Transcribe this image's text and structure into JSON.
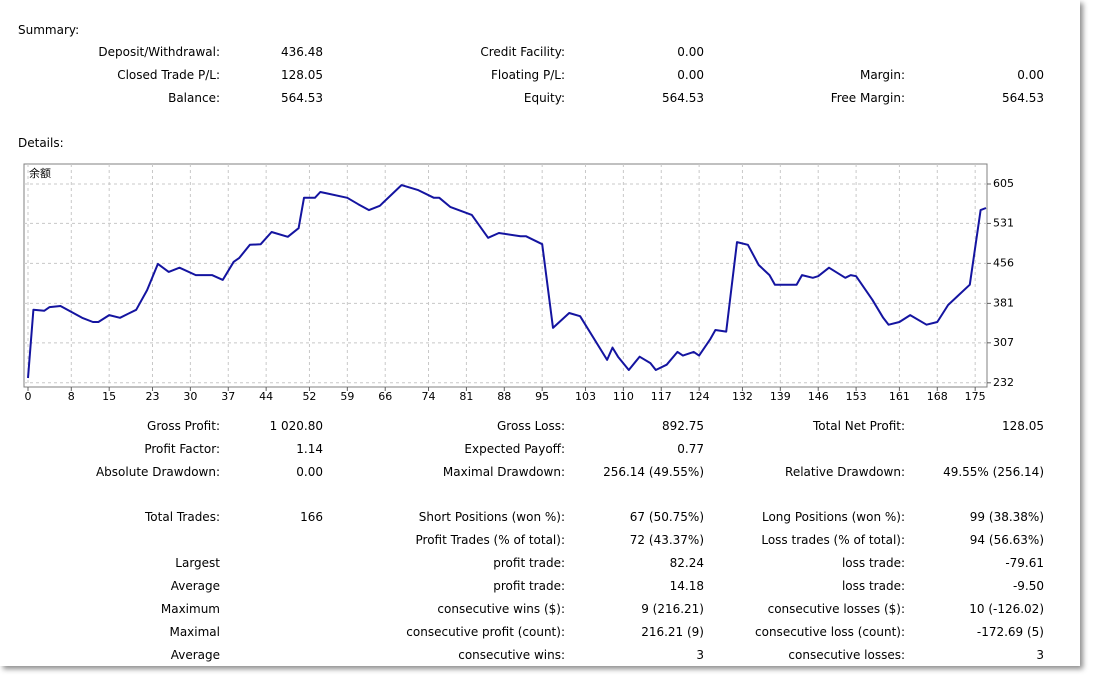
{
  "summary": {
    "title": "Summary:",
    "rows": [
      [
        {
          "label": "Deposit/Withdrawal:",
          "value": "436.48"
        },
        {
          "label": "Credit Facility:",
          "value": "0.00"
        },
        null
      ],
      [
        {
          "label": "Closed Trade P/L:",
          "value": "128.05"
        },
        {
          "label": "Floating P/L:",
          "value": "0.00"
        },
        {
          "label": "Margin:",
          "value": "0.00"
        }
      ],
      [
        {
          "label": "Balance:",
          "value": "564.53"
        },
        {
          "label": "Equity:",
          "value": "564.53"
        },
        {
          "label": "Free Margin:",
          "value": "564.53"
        }
      ]
    ]
  },
  "details": {
    "title": "Details:",
    "rows": [
      [
        {
          "label": "Gross Profit:",
          "value": "1 020.80"
        },
        {
          "label": "Gross Loss:",
          "value": "892.75"
        },
        {
          "label": "Total Net Profit:",
          "value": "128.05"
        }
      ],
      [
        {
          "label": "Profit Factor:",
          "value": "1.14"
        },
        {
          "label": "Expected Payoff:",
          "value": "0.77"
        },
        null
      ],
      [
        {
          "label": "Absolute Drawdown:",
          "value": "0.00"
        },
        {
          "label": "Maximal Drawdown:",
          "value": "256.14 (49.55%)"
        },
        {
          "label": "Relative Drawdown:",
          "value": "49.55% (256.14)"
        }
      ],
      [
        {
          "label": "Total Trades:",
          "value": "166"
        },
        {
          "label": "Short Positions (won %):",
          "value": "67 (50.75%)"
        },
        {
          "label": "Long Positions (won %):",
          "value": "99 (38.38%)"
        }
      ],
      [
        null,
        {
          "label": "Profit Trades (% of total):",
          "value": "72 (43.37%)"
        },
        {
          "label": "Loss trades (% of total):",
          "value": "94 (56.63%)"
        }
      ],
      [
        {
          "label": "Largest"
        },
        {
          "label": "profit trade:",
          "value": "82.24"
        },
        {
          "label": "loss trade:",
          "value": "-79.61"
        }
      ],
      [
        {
          "label": "Average"
        },
        {
          "label": "profit trade:",
          "value": "14.18"
        },
        {
          "label": "loss trade:",
          "value": "-9.50"
        }
      ],
      [
        {
          "label": "Maximum"
        },
        {
          "label": "consecutive wins ($):",
          "value": "9 (216.21)"
        },
        {
          "label": "consecutive losses ($):",
          "value": "10 (-126.02)"
        }
      ],
      [
        {
          "label": "Maximal"
        },
        {
          "label": "consecutive profit (count):",
          "value": "216.21 (9)"
        },
        {
          "label": "consecutive loss (count):",
          "value": "-172.69 (5)"
        }
      ],
      [
        {
          "label": "Average"
        },
        {
          "label": "consecutive wins:",
          "value": "3"
        },
        {
          "label": "consecutive losses:",
          "value": "3"
        }
      ]
    ]
  },
  "chart_data": {
    "type": "line",
    "title": "余额",
    "color": "#1414a0",
    "grid": true,
    "xlim": [
      0,
      177
    ],
    "ylim": [
      226,
      635
    ],
    "xticks": [
      0,
      8,
      15,
      23,
      30,
      37,
      44,
      52,
      59,
      66,
      74,
      81,
      88,
      95,
      103,
      110,
      117,
      124,
      132,
      139,
      146,
      153,
      161,
      168,
      175
    ],
    "yticks": [
      605,
      531,
      456,
      381,
      307,
      232
    ],
    "x": [
      0,
      1,
      3,
      4,
      6,
      8,
      10,
      12,
      13,
      15,
      17,
      18,
      20,
      22,
      24,
      26,
      28,
      31,
      34,
      36,
      38,
      39,
      41,
      43,
      45,
      48,
      50,
      51,
      53,
      54,
      55,
      59,
      61,
      63,
      65,
      69,
      72,
      75,
      76,
      78,
      82,
      85,
      87,
      91,
      92,
      95,
      97,
      100,
      102,
      107,
      108,
      109,
      111,
      113,
      115,
      116,
      118,
      120,
      121,
      123,
      124,
      126,
      127,
      129,
      131,
      133,
      135,
      137,
      138,
      142,
      143,
      145,
      146,
      148,
      151,
      152,
      153,
      156,
      158,
      159,
      161,
      163,
      166,
      168,
      170,
      172,
      174,
      176,
      177
    ],
    "values": [
      241,
      369,
      367,
      374,
      376,
      365,
      354,
      346,
      346,
      359,
      354,
      359,
      369,
      406,
      455,
      440,
      448,
      434,
      434,
      425,
      459,
      466,
      491,
      492,
      515,
      506,
      522,
      579,
      579,
      590,
      588,
      579,
      567,
      556,
      564,
      603,
      594,
      579,
      579,
      562,
      547,
      504,
      513,
      507,
      507,
      492,
      335,
      363,
      357,
      275,
      298,
      281,
      256,
      281,
      269,
      256,
      266,
      290,
      283,
      290,
      283,
      313,
      331,
      328,
      496,
      491,
      453,
      434,
      416,
      416,
      434,
      429,
      432,
      448,
      429,
      434,
      432,
      388,
      354,
      341,
      346,
      359,
      341,
      346,
      378,
      397,
      416,
      556,
      560
    ]
  }
}
